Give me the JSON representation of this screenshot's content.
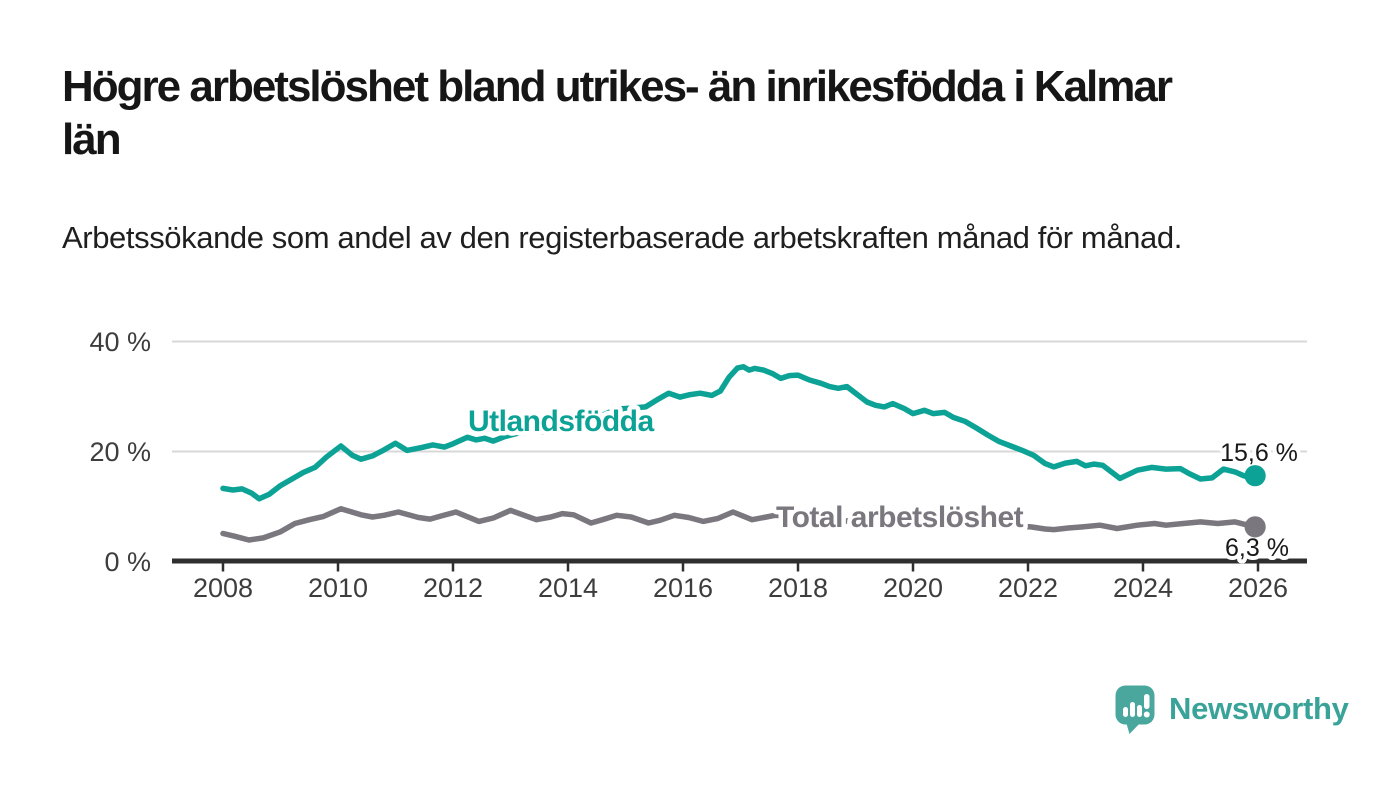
{
  "title": "Högre arbetslöshet bland utrikes- än inrikesfödda i Kalmar län",
  "title_lines": [
    "Högre arbetslöshet bland utrikes- än inrikesfödda i Kalmar",
    "län"
  ],
  "subtitle": "Arbetssökande som andel av den registerbaserade arbetskraften månad för månad.",
  "branding": {
    "name": "Newsworthy",
    "icon": "speech-bubble-bar-chart-icon",
    "icon_color": "#4aa79e",
    "text_color": "#3aa399"
  },
  "colors": {
    "series_foreign_born": "#0ca295",
    "series_total": "#7a777e",
    "gridline": "#d8d8d8",
    "axis": "#2f2f2f",
    "tick_text": "#3d3d3d",
    "value_label_text": "#191919",
    "background": "#ffffff"
  },
  "chart_data": {
    "type": "line",
    "unit": "%",
    "grid": "horizontal",
    "x_axis": {
      "tick_values": [
        2008,
        2010,
        2012,
        2014,
        2016,
        2018,
        2020,
        2022,
        2024,
        2026
      ],
      "tick_labels": [
        "2008",
        "2010",
        "2012",
        "2014",
        "2016",
        "2018",
        "2020",
        "2022",
        "2024",
        "2026"
      ],
      "range": [
        2007.1,
        2026.85
      ]
    },
    "y_axis": {
      "tick_values": [
        0,
        20,
        40
      ],
      "tick_labels": [
        "0 %",
        "20 %",
        "40 %"
      ],
      "gridlines_at": [
        20,
        40
      ],
      "range": [
        0,
        42
      ]
    },
    "series": [
      {
        "name": "Utlandsfödda",
        "slug": "utlandsfodda",
        "color": "#0ca295",
        "end_value": 15.6,
        "end_label": "15,6 %",
        "points": [
          [
            2008.0,
            13.3
          ],
          [
            2008.17,
            13.0
          ],
          [
            2008.33,
            13.2
          ],
          [
            2008.5,
            12.4
          ],
          [
            2008.63,
            11.4
          ],
          [
            2008.8,
            12.2
          ],
          [
            2009.0,
            13.8
          ],
          [
            2009.2,
            15.0
          ],
          [
            2009.4,
            16.2
          ],
          [
            2009.6,
            17.1
          ],
          [
            2009.8,
            19.0
          ],
          [
            2010.05,
            21.0
          ],
          [
            2010.25,
            19.3
          ],
          [
            2010.4,
            18.6
          ],
          [
            2010.6,
            19.2
          ],
          [
            2010.8,
            20.3
          ],
          [
            2011.0,
            21.5
          ],
          [
            2011.2,
            20.2
          ],
          [
            2011.45,
            20.7
          ],
          [
            2011.65,
            21.2
          ],
          [
            2011.85,
            20.8
          ],
          [
            2012.0,
            21.4
          ],
          [
            2012.25,
            22.6
          ],
          [
            2012.4,
            22.1
          ],
          [
            2012.55,
            22.4
          ],
          [
            2012.7,
            21.9
          ],
          [
            2012.9,
            22.7
          ],
          [
            2013.15,
            23.4
          ],
          [
            2013.4,
            23.8
          ],
          [
            2013.6,
            23.5
          ],
          [
            2013.85,
            24.3
          ],
          [
            2014.1,
            25.0
          ],
          [
            2014.35,
            25.7
          ],
          [
            2014.6,
            26.6
          ],
          [
            2014.85,
            27.7
          ],
          [
            2015.1,
            27.9
          ],
          [
            2015.35,
            28.1
          ],
          [
            2015.55,
            29.4
          ],
          [
            2015.75,
            30.6
          ],
          [
            2015.95,
            29.9
          ],
          [
            2016.1,
            30.3
          ],
          [
            2016.3,
            30.6
          ],
          [
            2016.5,
            30.2
          ],
          [
            2016.65,
            31.0
          ],
          [
            2016.8,
            33.5
          ],
          [
            2016.95,
            35.2
          ],
          [
            2017.05,
            35.4
          ],
          [
            2017.15,
            34.8
          ],
          [
            2017.25,
            35.1
          ],
          [
            2017.4,
            34.8
          ],
          [
            2017.55,
            34.2
          ],
          [
            2017.7,
            33.3
          ],
          [
            2017.85,
            33.8
          ],
          [
            2018.0,
            33.9
          ],
          [
            2018.2,
            33.0
          ],
          [
            2018.4,
            32.4
          ],
          [
            2018.55,
            31.8
          ],
          [
            2018.7,
            31.5
          ],
          [
            2018.85,
            31.8
          ],
          [
            2019.0,
            30.6
          ],
          [
            2019.2,
            29.0
          ],
          [
            2019.35,
            28.4
          ],
          [
            2019.5,
            28.1
          ],
          [
            2019.65,
            28.7
          ],
          [
            2019.85,
            27.8
          ],
          [
            2020.0,
            26.9
          ],
          [
            2020.2,
            27.5
          ],
          [
            2020.35,
            26.9
          ],
          [
            2020.55,
            27.1
          ],
          [
            2020.7,
            26.2
          ],
          [
            2020.9,
            25.5
          ],
          [
            2021.1,
            24.3
          ],
          [
            2021.3,
            23.0
          ],
          [
            2021.5,
            21.8
          ],
          [
            2021.7,
            21.0
          ],
          [
            2021.9,
            20.2
          ],
          [
            2022.1,
            19.3
          ],
          [
            2022.3,
            17.8
          ],
          [
            2022.45,
            17.2
          ],
          [
            2022.65,
            17.9
          ],
          [
            2022.85,
            18.2
          ],
          [
            2023.0,
            17.4
          ],
          [
            2023.15,
            17.7
          ],
          [
            2023.3,
            17.5
          ],
          [
            2023.6,
            15.1
          ],
          [
            2023.9,
            16.6
          ],
          [
            2024.15,
            17.1
          ],
          [
            2024.4,
            16.8
          ],
          [
            2024.65,
            16.9
          ],
          [
            2024.8,
            16.0
          ],
          [
            2025.0,
            15.0
          ],
          [
            2025.2,
            15.2
          ],
          [
            2025.4,
            16.8
          ],
          [
            2025.6,
            16.3
          ],
          [
            2025.75,
            15.6
          ],
          [
            2025.9,
            15.2
          ],
          [
            2025.95,
            15.6
          ]
        ]
      },
      {
        "name": "Total arbetslöshet",
        "slug": "total-arbetsloshet",
        "color": "#7a777e",
        "end_value": 6.3,
        "end_label": "6,3 %",
        "points": [
          [
            2008.0,
            5.1
          ],
          [
            2008.2,
            4.6
          ],
          [
            2008.45,
            3.9
          ],
          [
            2008.7,
            4.3
          ],
          [
            2009.0,
            5.4
          ],
          [
            2009.25,
            6.9
          ],
          [
            2009.5,
            7.6
          ],
          [
            2009.75,
            8.2
          ],
          [
            2010.05,
            9.6
          ],
          [
            2010.4,
            8.5
          ],
          [
            2010.6,
            8.1
          ],
          [
            2010.8,
            8.4
          ],
          [
            2011.05,
            9.0
          ],
          [
            2011.4,
            8.0
          ],
          [
            2011.6,
            7.7
          ],
          [
            2011.8,
            8.3
          ],
          [
            2012.05,
            9.0
          ],
          [
            2012.45,
            7.3
          ],
          [
            2012.7,
            7.9
          ],
          [
            2013.0,
            9.3
          ],
          [
            2013.45,
            7.6
          ],
          [
            2013.7,
            8.1
          ],
          [
            2013.9,
            8.7
          ],
          [
            2014.1,
            8.5
          ],
          [
            2014.4,
            7.0
          ],
          [
            2014.6,
            7.6
          ],
          [
            2014.85,
            8.4
          ],
          [
            2015.1,
            8.1
          ],
          [
            2015.4,
            7.0
          ],
          [
            2015.6,
            7.5
          ],
          [
            2015.85,
            8.4
          ],
          [
            2016.1,
            8.0
          ],
          [
            2016.35,
            7.3
          ],
          [
            2016.6,
            7.8
          ],
          [
            2016.87,
            9.0
          ],
          [
            2017.2,
            7.6
          ],
          [
            2017.45,
            8.1
          ],
          [
            2017.6,
            8.4
          ],
          [
            2017.85,
            8.2
          ],
          [
            2018.05,
            8.5
          ],
          [
            2018.4,
            7.4
          ],
          [
            2018.7,
            7.2
          ],
          [
            2019.05,
            7.6
          ],
          [
            2019.4,
            6.9
          ],
          [
            2019.7,
            6.8
          ],
          [
            2020.05,
            7.4
          ],
          [
            2020.3,
            8.6
          ],
          [
            2020.6,
            8.4
          ],
          [
            2020.9,
            8.0
          ],
          [
            2021.05,
            7.9
          ],
          [
            2021.4,
            7.0
          ],
          [
            2021.7,
            6.5
          ],
          [
            2022.05,
            6.3
          ],
          [
            2022.3,
            5.9
          ],
          [
            2022.45,
            5.8
          ],
          [
            2022.7,
            6.1
          ],
          [
            2022.95,
            6.3
          ],
          [
            2023.25,
            6.6
          ],
          [
            2023.55,
            6.0
          ],
          [
            2023.9,
            6.6
          ],
          [
            2024.2,
            6.9
          ],
          [
            2024.4,
            6.6
          ],
          [
            2024.7,
            6.9
          ],
          [
            2025.0,
            7.2
          ],
          [
            2025.3,
            6.9
          ],
          [
            2025.6,
            7.2
          ],
          [
            2025.95,
            6.3
          ]
        ]
      }
    ]
  }
}
